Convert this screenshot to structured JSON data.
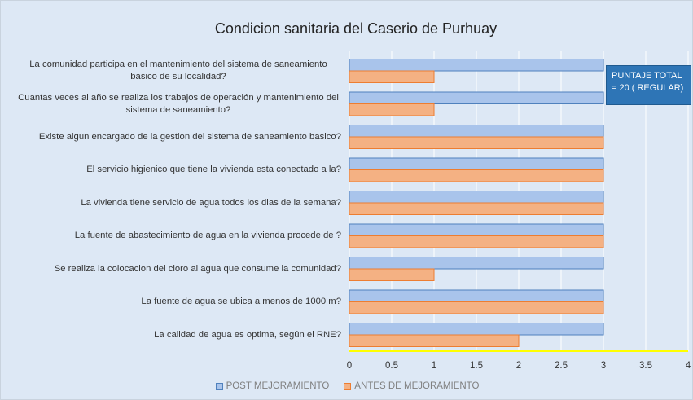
{
  "chart_data": {
    "type": "bar",
    "orientation": "horizontal",
    "title": "Condicion sanitaria del Caserio de Purhuay",
    "categories": [
      "La comunidad participa en el mantenimiento del sistema de saneamiento basico de su localidad?",
      "Cuantas veces al año se realiza los trabajos de operación y mantenimiento del sistema de saneamiento?",
      "Existe algun encargado de la gestion del sistema de saneamiento basico?",
      "El servicio higienico que tiene la vivienda esta conectado a la?",
      "La vivienda tiene servicio de agua todos los dias de la semana?",
      "La fuente de abastecimiento de agua en la vivienda procede de ?",
      "Se realiza la colocacion del cloro al agua que consume la comunidad?",
      "La fuente de agua se ubica a menos de 1000 m?",
      "La calidad de agua es optima, según el RNE?"
    ],
    "series": [
      {
        "name": "POST MEJORAMIENTO",
        "color": "#a9c4eb",
        "values": [
          3,
          3,
          3,
          3,
          3,
          3,
          3,
          3,
          3
        ]
      },
      {
        "name": "ANTES DE MEJORAMIENTO",
        "color": "#f4b183",
        "values": [
          1,
          1,
          3,
          3,
          3,
          3,
          1,
          3,
          2
        ]
      }
    ],
    "xlim": [
      0,
      4
    ],
    "xticks": [
      0,
      0.5,
      1,
      1.5,
      2,
      2.5,
      3,
      3.5,
      4
    ],
    "grid": true,
    "annotation": "PUNTAJE TOTAL = 20 ( REGULAR)"
  }
}
